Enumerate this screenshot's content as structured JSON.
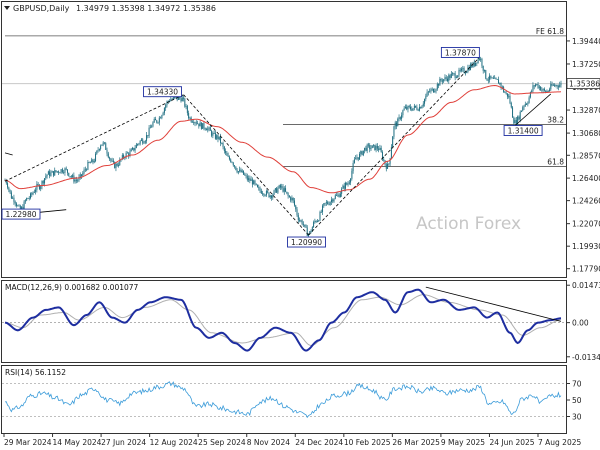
{
  "header": {
    "arrow_icon": "triangle-down-icon",
    "symbol_label": "GBPUSD,Daily",
    "ohlc_text": "1.34979 1.35398 1.34972 1.35386"
  },
  "watermark": "Action Forex",
  "colors": {
    "candle": "#1f6f82",
    "ema": "#e0403a",
    "macd_line": "#1e2ea0",
    "macd_signal": "#b0b0b0",
    "rsi": "#3a9bd9",
    "trendline": "#000000",
    "grid": "#c8c8c8"
  },
  "chart_data": [
    {
      "type": "candlestick",
      "name": "price",
      "title": "GBPUSD,Daily",
      "current_price": 1.35386,
      "current_price_label": "1.35386",
      "ylim": [
        1.17,
        1.42
      ],
      "y_ticks": [
        "1.39440",
        "1.37250",
        "1.35060",
        "1.32870",
        "1.30680",
        "1.28570",
        "1.26400",
        "1.24260",
        "1.22070",
        "1.19930",
        "1.17790"
      ],
      "x_ticks": [
        "29 Mar 2024",
        "14 May 2024",
        "27 Jun 2024",
        "12 Aug 2024",
        "25 Sep 2024",
        "8 Nov 2024",
        "24 Dec 2024",
        "10 Feb 2025",
        "26 Mar 2025",
        "9 May 2025",
        "24 Jun 2025",
        "7 Aug 2025"
      ],
      "anchors": [
        {
          "day": 0,
          "price": 1.262
        },
        {
          "day": 6,
          "price": 1.245
        },
        {
          "day": 12,
          "price": 1.234
        },
        {
          "day": 18,
          "price": 1.245
        },
        {
          "day": 26,
          "price": 1.256
        },
        {
          "day": 34,
          "price": 1.268
        },
        {
          "day": 46,
          "price": 1.272
        },
        {
          "day": 56,
          "price": 1.262
        },
        {
          "day": 68,
          "price": 1.279
        },
        {
          "day": 76,
          "price": 1.297
        },
        {
          "day": 86,
          "price": 1.276
        },
        {
          "day": 96,
          "price": 1.287
        },
        {
          "day": 108,
          "price": 1.3
        },
        {
          "day": 118,
          "price": 1.318
        },
        {
          "day": 130,
          "price": 1.339
        },
        {
          "day": 138,
          "price": 1.34
        },
        {
          "day": 146,
          "price": 1.32
        },
        {
          "day": 156,
          "price": 1.313
        },
        {
          "day": 166,
          "price": 1.303
        },
        {
          "day": 176,
          "price": 1.282
        },
        {
          "day": 184,
          "price": 1.27
        },
        {
          "day": 192,
          "price": 1.262
        },
        {
          "day": 200,
          "price": 1.252
        },
        {
          "day": 208,
          "price": 1.248
        },
        {
          "day": 216,
          "price": 1.255
        },
        {
          "day": 224,
          "price": 1.245
        },
        {
          "day": 232,
          "price": 1.223
        },
        {
          "day": 238,
          "price": 1.211
        },
        {
          "day": 244,
          "price": 1.224
        },
        {
          "day": 252,
          "price": 1.24
        },
        {
          "day": 260,
          "price": 1.247
        },
        {
          "day": 268,
          "price": 1.258
        },
        {
          "day": 276,
          "price": 1.284
        },
        {
          "day": 284,
          "price": 1.293
        },
        {
          "day": 292,
          "price": 1.293
        },
        {
          "day": 300,
          "price": 1.275
        },
        {
          "day": 306,
          "price": 1.315
        },
        {
          "day": 314,
          "price": 1.33
        },
        {
          "day": 324,
          "price": 1.331
        },
        {
          "day": 334,
          "price": 1.347
        },
        {
          "day": 344,
          "price": 1.358
        },
        {
          "day": 352,
          "price": 1.362
        },
        {
          "day": 360,
          "price": 1.366
        },
        {
          "day": 366,
          "price": 1.371
        },
        {
          "day": 372,
          "price": 1.378
        },
        {
          "day": 378,
          "price": 1.359
        },
        {
          "day": 386,
          "price": 1.356
        },
        {
          "day": 394,
          "price": 1.343
        },
        {
          "day": 400,
          "price": 1.317
        },
        {
          "day": 408,
          "price": 1.335
        },
        {
          "day": 416,
          "price": 1.353
        },
        {
          "day": 424,
          "price": 1.346
        },
        {
          "day": 430,
          "price": 1.352
        },
        {
          "day": 436,
          "price": 1.353
        }
      ],
      "ema_anchors": [
        {
          "day": 0,
          "price": 1.262
        },
        {
          "day": 12,
          "price": 1.254
        },
        {
          "day": 30,
          "price": 1.257
        },
        {
          "day": 56,
          "price": 1.264
        },
        {
          "day": 80,
          "price": 1.276
        },
        {
          "day": 100,
          "price": 1.286
        },
        {
          "day": 120,
          "price": 1.3
        },
        {
          "day": 138,
          "price": 1.318
        },
        {
          "day": 150,
          "price": 1.32
        },
        {
          "day": 166,
          "price": 1.313
        },
        {
          "day": 186,
          "price": 1.298
        },
        {
          "day": 206,
          "price": 1.284
        },
        {
          "day": 226,
          "price": 1.27
        },
        {
          "day": 240,
          "price": 1.255
        },
        {
          "day": 256,
          "price": 1.25
        },
        {
          "day": 270,
          "price": 1.253
        },
        {
          "day": 286,
          "price": 1.263
        },
        {
          "day": 300,
          "price": 1.28
        },
        {
          "day": 316,
          "price": 1.305
        },
        {
          "day": 334,
          "price": 1.322
        },
        {
          "day": 350,
          "price": 1.336
        },
        {
          "day": 368,
          "price": 1.348
        },
        {
          "day": 384,
          "price": 1.352
        },
        {
          "day": 400,
          "price": 1.344
        },
        {
          "day": 416,
          "price": 1.345
        },
        {
          "day": 436,
          "price": 1.346
        }
      ],
      "price_labels": [
        {
          "text": "1.34330",
          "day": 140,
          "price": 1.3433
        },
        {
          "text": "1.20990",
          "day": 238,
          "price": 1.2099
        },
        {
          "text": "1.37870",
          "day": 372,
          "price": 1.3787
        },
        {
          "text": "1.31400",
          "day": 400,
          "price": 1.314
        },
        {
          "text": "1.22980",
          "day": 4,
          "price": 1.2298
        }
      ],
      "fib_levels": [
        {
          "label": "FE 61.8",
          "price": 1.3992,
          "from_day": 0
        },
        {
          "label": "38.2",
          "price": 1.315,
          "from_day": 218
        },
        {
          "label": "61.8",
          "price": 1.275,
          "from_day": 218
        }
      ],
      "trendlines": [
        {
          "from": {
            "day": 0,
            "price": 1.261
          },
          "to": {
            "day": 140,
            "price": 1.3433
          },
          "dashed": true
        },
        {
          "from": {
            "day": 140,
            "price": 1.3433
          },
          "to": {
            "day": 238,
            "price": 1.2099
          },
          "dashed": true
        },
        {
          "from": {
            "day": 238,
            "price": 1.2099
          },
          "to": {
            "day": 372,
            "price": 1.3787
          },
          "dashed": true
        },
        {
          "from": {
            "day": 400,
            "price": 1.314
          },
          "to": {
            "day": 428,
            "price": 1.344
          },
          "dashed": false
        },
        {
          "from": {
            "day": 0,
            "price": 1.288
          },
          "to": {
            "day": 6,
            "price": 1.286
          },
          "dashed": false
        },
        {
          "from": {
            "day": 6,
            "price": 1.229
          },
          "to": {
            "day": 48,
            "price": 1.234
          },
          "dashed": false
        }
      ]
    },
    {
      "type": "line",
      "name": "macd",
      "title": "MACD(12,26,9) 0.001682 0.001077",
      "ylim": [
        -0.0155,
        0.016
      ],
      "y_ticks": [
        "0.014734",
        "0.00",
        "-0.013442"
      ],
      "zero_line": 0,
      "main_anchors": [
        {
          "day": 0,
          "value": 0.0
        },
        {
          "day": 10,
          "value": -0.003
        },
        {
          "day": 22,
          "value": 0.002
        },
        {
          "day": 32,
          "value": 0.005
        },
        {
          "day": 42,
          "value": 0.006
        },
        {
          "day": 54,
          "value": -0.001
        },
        {
          "day": 64,
          "value": 0.003
        },
        {
          "day": 74,
          "value": 0.008
        },
        {
          "day": 84,
          "value": 0.002
        },
        {
          "day": 94,
          "value": 0.0
        },
        {
          "day": 104,
          "value": 0.005
        },
        {
          "day": 114,
          "value": 0.008
        },
        {
          "day": 126,
          "value": 0.01
        },
        {
          "day": 138,
          "value": 0.009
        },
        {
          "day": 150,
          "value": -0.002
        },
        {
          "day": 160,
          "value": -0.006
        },
        {
          "day": 170,
          "value": -0.004
        },
        {
          "day": 180,
          "value": -0.008
        },
        {
          "day": 190,
          "value": -0.011
        },
        {
          "day": 200,
          "value": -0.006
        },
        {
          "day": 212,
          "value": -0.002
        },
        {
          "day": 224,
          "value": -0.004
        },
        {
          "day": 236,
          "value": -0.011
        },
        {
          "day": 246,
          "value": -0.007
        },
        {
          "day": 256,
          "value": 0.0
        },
        {
          "day": 266,
          "value": 0.004
        },
        {
          "day": 276,
          "value": 0.01
        },
        {
          "day": 288,
          "value": 0.012
        },
        {
          "day": 298,
          "value": 0.009
        },
        {
          "day": 306,
          "value": 0.004
        },
        {
          "day": 316,
          "value": 0.012
        },
        {
          "day": 324,
          "value": 0.013
        },
        {
          "day": 334,
          "value": 0.008
        },
        {
          "day": 344,
          "value": 0.009
        },
        {
          "day": 356,
          "value": 0.005
        },
        {
          "day": 368,
          "value": 0.006
        },
        {
          "day": 378,
          "value": 0.002
        },
        {
          "day": 386,
          "value": 0.004
        },
        {
          "day": 396,
          "value": -0.004
        },
        {
          "day": 402,
          "value": -0.008
        },
        {
          "day": 410,
          "value": -0.003
        },
        {
          "day": 418,
          "value": 0.0
        },
        {
          "day": 428,
          "value": 0.001
        },
        {
          "day": 436,
          "value": 0.0017
        }
      ],
      "signal_anchors": [
        {
          "day": 0,
          "value": 0.0
        },
        {
          "day": 14,
          "value": -0.002
        },
        {
          "day": 28,
          "value": 0.003
        },
        {
          "day": 46,
          "value": 0.004
        },
        {
          "day": 58,
          "value": 0.001
        },
        {
          "day": 78,
          "value": 0.006
        },
        {
          "day": 92,
          "value": 0.002
        },
        {
          "day": 110,
          "value": 0.006
        },
        {
          "day": 130,
          "value": 0.009
        },
        {
          "day": 144,
          "value": 0.005
        },
        {
          "day": 162,
          "value": -0.004
        },
        {
          "day": 186,
          "value": -0.008
        },
        {
          "day": 204,
          "value": -0.006
        },
        {
          "day": 228,
          "value": -0.004
        },
        {
          "day": 240,
          "value": -0.009
        },
        {
          "day": 258,
          "value": -0.002
        },
        {
          "day": 280,
          "value": 0.009
        },
        {
          "day": 294,
          "value": 0.01
        },
        {
          "day": 310,
          "value": 0.007
        },
        {
          "day": 328,
          "value": 0.011
        },
        {
          "day": 348,
          "value": 0.008
        },
        {
          "day": 372,
          "value": 0.005
        },
        {
          "day": 390,
          "value": 0.003
        },
        {
          "day": 406,
          "value": -0.005
        },
        {
          "day": 420,
          "value": -0.002
        },
        {
          "day": 436,
          "value": 0.0011
        }
      ],
      "trendline": {
        "from": {
          "day": 330,
          "value": 0.014
        },
        "to": {
          "day": 436,
          "value": 0.0005
        }
      }
    },
    {
      "type": "line",
      "name": "rsi",
      "title": "RSI(14) 56.1152",
      "ylim": [
        10,
        90
      ],
      "y_ticks": [
        "70",
        "50",
        "30"
      ],
      "levels": [
        70,
        30
      ],
      "anchors": [
        {
          "day": 0,
          "value": 48
        },
        {
          "day": 6,
          "value": 38
        },
        {
          "day": 12,
          "value": 42
        },
        {
          "day": 20,
          "value": 55
        },
        {
          "day": 30,
          "value": 58
        },
        {
          "day": 40,
          "value": 52
        },
        {
          "day": 50,
          "value": 44
        },
        {
          "day": 60,
          "value": 56
        },
        {
          "day": 70,
          "value": 64
        },
        {
          "day": 80,
          "value": 50
        },
        {
          "day": 90,
          "value": 46
        },
        {
          "day": 100,
          "value": 58
        },
        {
          "day": 110,
          "value": 61
        },
        {
          "day": 120,
          "value": 66
        },
        {
          "day": 130,
          "value": 70
        },
        {
          "day": 140,
          "value": 64
        },
        {
          "day": 150,
          "value": 42
        },
        {
          "day": 160,
          "value": 45
        },
        {
          "day": 170,
          "value": 40
        },
        {
          "day": 180,
          "value": 36
        },
        {
          "day": 190,
          "value": 33
        },
        {
          "day": 200,
          "value": 48
        },
        {
          "day": 210,
          "value": 52
        },
        {
          "day": 220,
          "value": 42
        },
        {
          "day": 230,
          "value": 35
        },
        {
          "day": 238,
          "value": 30
        },
        {
          "day": 248,
          "value": 45
        },
        {
          "day": 258,
          "value": 55
        },
        {
          "day": 268,
          "value": 58
        },
        {
          "day": 278,
          "value": 67
        },
        {
          "day": 288,
          "value": 62
        },
        {
          "day": 298,
          "value": 50
        },
        {
          "day": 306,
          "value": 64
        },
        {
          "day": 316,
          "value": 66
        },
        {
          "day": 326,
          "value": 60
        },
        {
          "day": 336,
          "value": 64
        },
        {
          "day": 346,
          "value": 58
        },
        {
          "day": 356,
          "value": 62
        },
        {
          "day": 366,
          "value": 62
        },
        {
          "day": 372,
          "value": 66
        },
        {
          "day": 380,
          "value": 45
        },
        {
          "day": 390,
          "value": 48
        },
        {
          "day": 398,
          "value": 33
        },
        {
          "day": 406,
          "value": 52
        },
        {
          "day": 414,
          "value": 56
        },
        {
          "day": 420,
          "value": 46
        },
        {
          "day": 428,
          "value": 55
        },
        {
          "day": 436,
          "value": 56
        }
      ]
    }
  ]
}
